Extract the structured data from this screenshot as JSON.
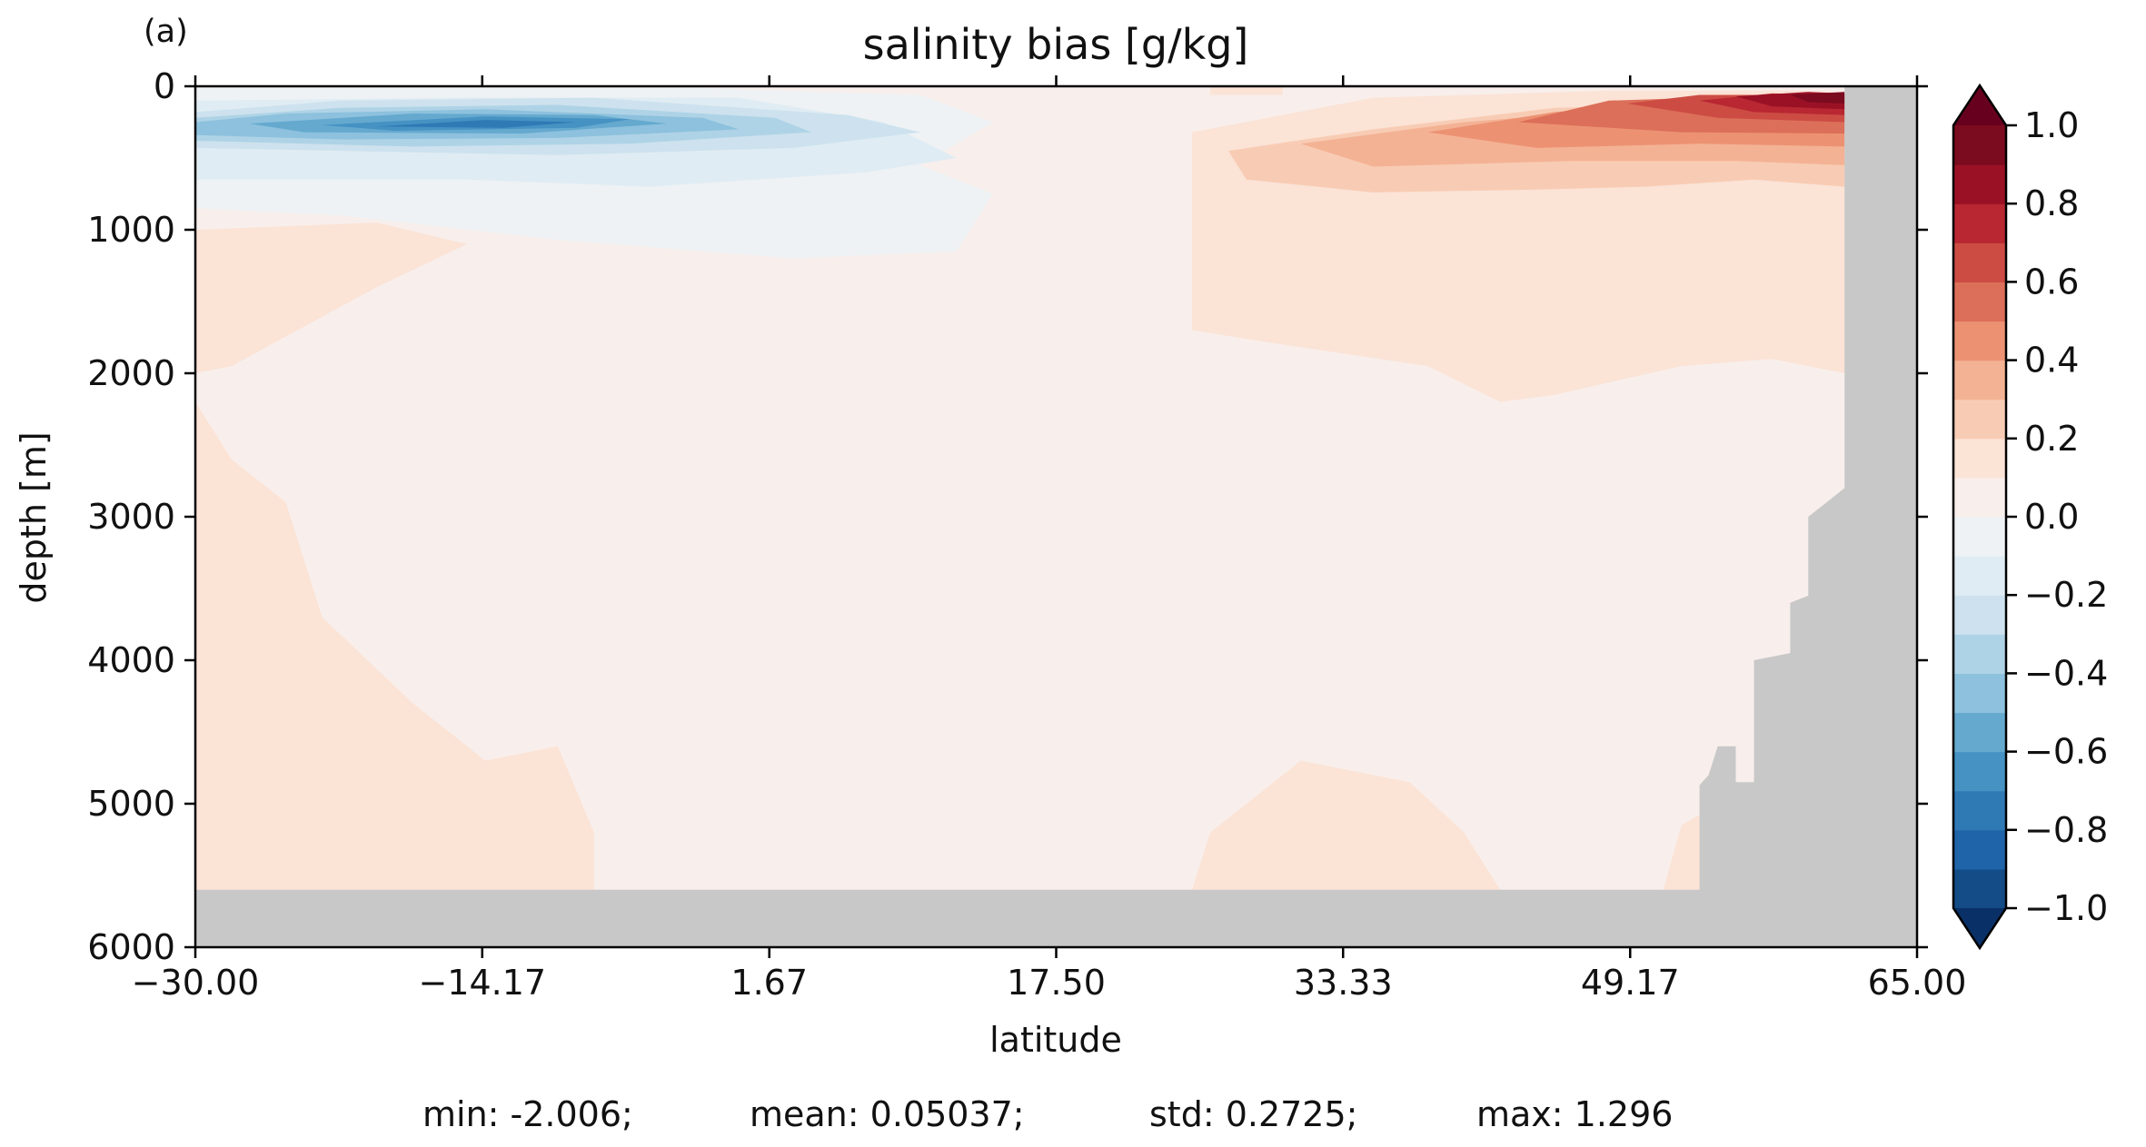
{
  "panel_label": "(a)",
  "stats": {
    "min": "min: -2.006;",
    "mean": "mean: 0.05037;",
    "std": "std: 0.2725;",
    "max": "max: 1.296"
  },
  "chart_data": {
    "type": "heatmap",
    "title": "salinity bias [g/kg]",
    "xlabel": "latitude",
    "ylabel": "depth [m]",
    "xlim": [
      -30.0,
      65.0
    ],
    "ylim": [
      6000,
      0
    ],
    "y_inverted": true,
    "x_ticks": [
      -30.0,
      -14.17,
      1.67,
      17.5,
      33.33,
      49.17,
      65.0
    ],
    "x_tick_labels": [
      "−30.00",
      "−14.17",
      "1.67",
      "17.50",
      "33.33",
      "49.17",
      "65.00"
    ],
    "y_ticks": [
      0,
      1000,
      2000,
      3000,
      4000,
      5000,
      6000
    ],
    "y_tick_labels": [
      "0",
      "1000",
      "2000",
      "3000",
      "4000",
      "5000",
      "6000"
    ],
    "land_color": "#c8c8c8",
    "colorbar": {
      "levels": [
        -1.0,
        -0.9,
        -0.8,
        -0.7,
        -0.6,
        -0.5,
        -0.4,
        -0.3,
        -0.2,
        -0.1,
        0.0,
        0.1,
        0.2,
        0.3,
        0.4,
        0.5,
        0.6,
        0.7,
        0.8,
        0.9,
        1.0
      ],
      "colors": [
        "#134c87",
        "#1f63a8",
        "#2f79b5",
        "#4592c3",
        "#65a9cf",
        "#8dc1dd",
        "#afd3e6",
        "#cde2ee",
        "#e0ecf3",
        "#eef2f4",
        "#f8efec",
        "#fbe3d6",
        "#f8ccb4",
        "#f4b294",
        "#ec9273",
        "#dc6f59",
        "#cc4c44",
        "#b82732",
        "#9a1125",
        "#7b0b1f"
      ],
      "under_color": "#0a3167",
      "over_color": "#67001f",
      "tick_values": [
        1.0,
        0.8,
        0.6,
        0.4,
        0.2,
        0.0,
        -0.2,
        -0.4,
        -0.6,
        -0.8,
        -1.0
      ],
      "tick_labels": [
        "1.0",
        "0.8",
        "0.6",
        "0.4",
        "0.2",
        "0.0",
        "−0.2",
        "−0.4",
        "−0.6",
        "−0.8",
        "−1.0"
      ],
      "extend": "both"
    },
    "fields": [
      {
        "level": 0.0,
        "polygon": [
          [
            -30,
            0
          ],
          [
            65,
            0
          ],
          [
            65,
            6000
          ],
          [
            -30,
            6000
          ]
        ]
      },
      {
        "level": -0.1,
        "polygon": [
          [
            -30,
            0
          ],
          [
            -5,
            0
          ],
          [
            10,
            60
          ],
          [
            14,
            250
          ],
          [
            10,
            550
          ],
          [
            14,
            750
          ],
          [
            12,
            1150
          ],
          [
            3,
            1200
          ],
          [
            -10,
            1070
          ],
          [
            -22,
            900
          ],
          [
            -30,
            850
          ]
        ]
      },
      {
        "level": 0.1,
        "polygon": [
          [
            25,
            320
          ],
          [
            35,
            80
          ],
          [
            48,
            30
          ],
          [
            58,
            30
          ],
          [
            61,
            40
          ],
          [
            61,
            2000
          ],
          [
            57,
            1900
          ],
          [
            52,
            1950
          ],
          [
            45,
            2150
          ],
          [
            42,
            2200
          ],
          [
            38,
            1950
          ],
          [
            30,
            1800
          ],
          [
            25,
            1700
          ]
        ]
      },
      {
        "level": 0.1,
        "polygon": [
          [
            -30,
            1000
          ],
          [
            -20,
            950
          ],
          [
            -15,
            1100
          ],
          [
            -20,
            1400
          ],
          [
            -28,
            1950
          ],
          [
            -30,
            2000
          ]
        ]
      },
      {
        "level": 0.1,
        "polygon": [
          [
            -30,
            2200
          ],
          [
            -28,
            2600
          ],
          [
            -25,
            2900
          ],
          [
            -23,
            3700
          ],
          [
            -18,
            4300
          ],
          [
            -14,
            4700
          ],
          [
            -10,
            4600
          ],
          [
            -8,
            5200
          ],
          [
            -8,
            5600
          ],
          [
            -30,
            5600
          ]
        ]
      },
      {
        "level": 0.1,
        "polygon": [
          [
            25,
            5600
          ],
          [
            26,
            5200
          ],
          [
            31,
            4700
          ],
          [
            37,
            4850
          ],
          [
            40,
            5200
          ],
          [
            42,
            5600
          ]
        ]
      },
      {
        "level": 0.1,
        "polygon": [
          [
            51,
            5600
          ],
          [
            52,
            5150
          ],
          [
            54,
            5000
          ],
          [
            54,
            5600
          ]
        ]
      },
      {
        "level": -0.2,
        "polygon": [
          [
            -30,
            100
          ],
          [
            -15,
            80
          ],
          [
            0,
            80
          ],
          [
            8,
            250
          ],
          [
            12,
            500
          ],
          [
            7,
            600
          ],
          [
            -5,
            700
          ],
          [
            -15,
            650
          ],
          [
            -30,
            650
          ]
        ]
      },
      {
        "level": -0.3,
        "polygon": [
          [
            -30,
            180
          ],
          [
            -22,
            100
          ],
          [
            -8,
            80
          ],
          [
            6,
            200
          ],
          [
            10,
            320
          ],
          [
            3,
            430
          ],
          [
            -10,
            480
          ],
          [
            -22,
            450
          ],
          [
            -30,
            430
          ]
        ]
      },
      {
        "level": -0.4,
        "polygon": [
          [
            -30,
            220
          ],
          [
            -22,
            150
          ],
          [
            -10,
            130
          ],
          [
            2,
            220
          ],
          [
            4,
            320
          ],
          [
            -6,
            400
          ],
          [
            -18,
            420
          ],
          [
            -30,
            380
          ]
        ]
      },
      {
        "level": -0.5,
        "polygon": [
          [
            -30,
            250
          ],
          [
            -25,
            190
          ],
          [
            -14,
            160
          ],
          [
            -2,
            220
          ],
          [
            0,
            300
          ],
          [
            -10,
            360
          ],
          [
            -22,
            370
          ],
          [
            -30,
            340
          ]
        ]
      },
      {
        "level": -0.6,
        "polygon": [
          [
            -27,
            260
          ],
          [
            -18,
            190
          ],
          [
            -8,
            200
          ],
          [
            -4,
            260
          ],
          [
            -12,
            330
          ],
          [
            -24,
            320
          ]
        ]
      },
      {
        "level": -0.7,
        "polygon": [
          [
            -23,
            270
          ],
          [
            -14,
            210
          ],
          [
            -6,
            230
          ],
          [
            -9,
            290
          ],
          [
            -19,
            310
          ]
        ]
      },
      {
        "level": -0.8,
        "polygon": [
          [
            -20,
            280
          ],
          [
            -14,
            235
          ],
          [
            -9,
            250
          ],
          [
            -13,
            290
          ]
        ]
      },
      {
        "level": 0.2,
        "polygon": [
          [
            27,
            450
          ],
          [
            35,
            300
          ],
          [
            45,
            150
          ],
          [
            55,
            120
          ],
          [
            61,
            150
          ],
          [
            61,
            700
          ],
          [
            56,
            650
          ],
          [
            50,
            700
          ],
          [
            44,
            720
          ],
          [
            35,
            740
          ],
          [
            28,
            650
          ]
        ]
      },
      {
        "level": 0.3,
        "polygon": [
          [
            31,
            400
          ],
          [
            40,
            250
          ],
          [
            50,
            150
          ],
          [
            61,
            140
          ],
          [
            61,
            550
          ],
          [
            55,
            520
          ],
          [
            46,
            520
          ],
          [
            35,
            560
          ]
        ]
      },
      {
        "level": 0.4,
        "polygon": [
          [
            38,
            320
          ],
          [
            45,
            180
          ],
          [
            53,
            100
          ],
          [
            61,
            110
          ],
          [
            61,
            420
          ],
          [
            53,
            400
          ],
          [
            44,
            430
          ]
        ]
      },
      {
        "level": 0.5,
        "polygon": [
          [
            43,
            250
          ],
          [
            48,
            100
          ],
          [
            58,
            60
          ],
          [
            61,
            80
          ],
          [
            61,
            330
          ],
          [
            52,
            320
          ]
        ]
      },
      {
        "level": 0.6,
        "polygon": [
          [
            49,
            120
          ],
          [
            53,
            60
          ],
          [
            61,
            60
          ],
          [
            61,
            250
          ],
          [
            54,
            220
          ]
        ]
      },
      {
        "level": 0.7,
        "polygon": [
          [
            53,
            100
          ],
          [
            57,
            50
          ],
          [
            61,
            60
          ],
          [
            61,
            200
          ],
          [
            56,
            180
          ]
        ]
      },
      {
        "level": 0.8,
        "polygon": [
          [
            55,
            70
          ],
          [
            59,
            40
          ],
          [
            61,
            50
          ],
          [
            61,
            160
          ],
          [
            57,
            140
          ]
        ]
      },
      {
        "level": 0.9,
        "polygon": [
          [
            58,
            60
          ],
          [
            61,
            40
          ],
          [
            61,
            120
          ],
          [
            59,
            110
          ]
        ]
      },
      {
        "level": 0.1,
        "polygon": [
          [
            26,
            0
          ],
          [
            30,
            0
          ],
          [
            30,
            60
          ],
          [
            26,
            60
          ]
        ]
      }
    ],
    "land": [
      [
        [
          -30,
          5600
        ],
        [
          65,
          5600
        ],
        [
          65,
          6000
        ],
        [
          -30,
          6000
        ]
      ],
      [
        [
          61,
          0
        ],
        [
          65,
          0
        ],
        [
          65,
          6000
        ],
        [
          53,
          6000
        ],
        [
          53,
          4870
        ],
        [
          53.5,
          4800
        ],
        [
          54,
          4600
        ],
        [
          55,
          4600
        ],
        [
          55,
          4850
        ],
        [
          56,
          4850
        ],
        [
          56,
          4000
        ],
        [
          58,
          3950
        ],
        [
          58,
          3600
        ],
        [
          59,
          3550
        ],
        [
          59,
          3000
        ],
        [
          60,
          2900
        ],
        [
          61,
          2800
        ]
      ]
    ]
  }
}
